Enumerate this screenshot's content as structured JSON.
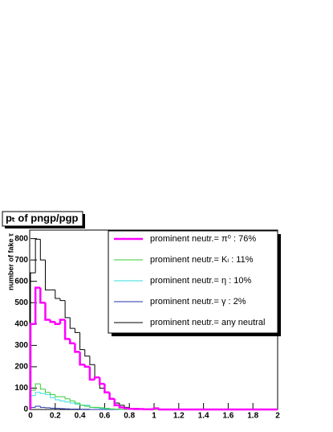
{
  "chart_data": {
    "type": "histogram",
    "title": "pₜ of pngp/pgp",
    "y_label": "number of fake τ",
    "bins": [
      0,
      0.04,
      0.08,
      0.12,
      0.16,
      0.2,
      0.24,
      0.28,
      0.32,
      0.36,
      0.4,
      0.44,
      0.48,
      0.52,
      0.56,
      0.6,
      0.64,
      0.68,
      0.72,
      0.76,
      0.8,
      0.84,
      0.88,
      0.92,
      0.96,
      1,
      1.04,
      1.08,
      1.12,
      1.16,
      1.2,
      1.24,
      1.28,
      1.32,
      1.36,
      1.4,
      1.44,
      1.48,
      1.52,
      1.56,
      1.6,
      1.64,
      1.68,
      1.72,
      1.76,
      1.8,
      1.84,
      1.88,
      1.92,
      1.96,
      2
    ],
    "series": [
      {
        "name": "prominent neutr.= π⁰ : 76%",
        "color": "#ff00ff",
        "values": [
          400,
          570,
          500,
          420,
          410,
          400,
          420,
          330,
          310,
          270,
          210,
          200,
          140,
          150,
          120,
          80,
          50,
          20,
          10,
          5,
          3,
          2,
          2,
          1,
          1,
          5,
          0,
          0,
          0,
          0,
          0,
          0,
          0,
          0,
          0,
          0,
          0,
          0,
          0,
          0,
          0,
          0,
          0,
          0,
          0,
          0,
          0,
          0,
          0,
          0
        ]
      },
      {
        "name": "prominent neutr.= Kₗ : 11%",
        "color": "#33cc33",
        "values": [
          90,
          120,
          95,
          80,
          70,
          60,
          60,
          50,
          40,
          30,
          20,
          15,
          10,
          10,
          8,
          5,
          3,
          2,
          1,
          0,
          0,
          0,
          0,
          0,
          0,
          0,
          0,
          0,
          0,
          0,
          0,
          0,
          0,
          0,
          0,
          0,
          0,
          0,
          0,
          0,
          0,
          0,
          0,
          0,
          0,
          0,
          0,
          0,
          0,
          0
        ]
      },
      {
        "name": "prominent neutr.= η : 10%",
        "color": "#33dddd",
        "values": [
          65,
          80,
          75,
          70,
          55,
          45,
          40,
          35,
          30,
          25,
          20,
          20,
          10,
          8,
          5,
          3,
          2,
          1,
          0,
          0,
          0,
          0,
          0,
          0,
          0,
          0,
          0,
          0,
          0,
          0,
          0,
          0,
          0,
          0,
          0,
          0,
          0,
          0,
          0,
          0,
          0,
          0,
          0,
          0,
          0,
          0,
          0,
          0,
          0,
          0
        ]
      },
      {
        "name": "prominent neutr.= γ : 2%",
        "color": "#2233aa",
        "values": [
          10,
          15,
          10,
          8,
          6,
          5,
          4,
          3,
          2,
          2,
          1,
          1,
          0,
          0,
          0,
          0,
          0,
          0,
          0,
          0,
          0,
          0,
          0,
          0,
          0,
          0,
          0,
          0,
          0,
          0,
          0,
          0,
          0,
          0,
          0,
          0,
          0,
          0,
          0,
          0,
          0,
          0,
          0,
          0,
          0,
          0,
          0,
          0,
          0,
          0
        ]
      },
      {
        "name": "prominent neutr.= any neutral",
        "color": "#000000",
        "values": [
          640,
          797,
          700,
          560,
          560,
          520,
          510,
          430,
          380,
          360,
          280,
          250,
          210,
          150,
          100,
          80,
          50,
          30,
          20,
          10,
          5,
          5,
          3,
          2,
          2,
          5,
          1,
          1,
          0,
          0,
          0,
          0,
          0,
          0,
          0,
          0,
          0,
          0,
          0,
          0,
          0,
          0,
          0,
          0,
          0,
          0,
          0,
          0,
          0,
          0
        ]
      }
    ],
    "xlim": [
      0,
      2
    ],
    "xticks": [
      0,
      0.2,
      0.4,
      0.6,
      0.8,
      1,
      1.2,
      1.4,
      1.6,
      1.8,
      2
    ],
    "ylim": [
      0,
      840
    ],
    "yticks": [
      0,
      100,
      200,
      300,
      400,
      500,
      600,
      700,
      800
    ]
  }
}
